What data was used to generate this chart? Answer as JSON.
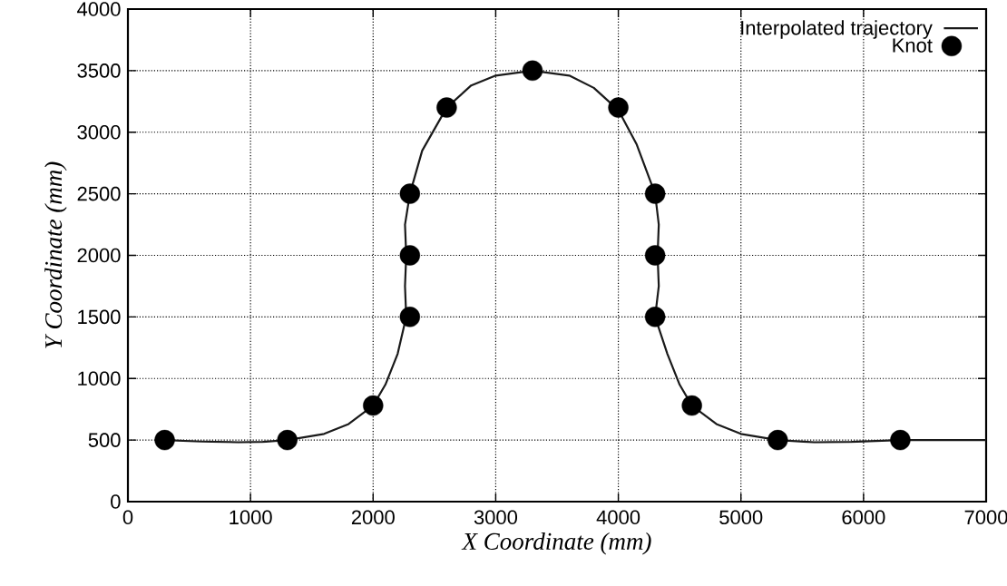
{
  "chart_data": {
    "type": "line",
    "xlabel": "X Coordinate (mm)",
    "ylabel": "Y Coordinate (mm)",
    "xlim": [
      0,
      7000
    ],
    "ylim": [
      0,
      4000
    ],
    "xticks": [
      0,
      1000,
      2000,
      3000,
      4000,
      5000,
      6000,
      7000
    ],
    "yticks": [
      0,
      500,
      1000,
      1500,
      2000,
      2500,
      3000,
      3500,
      4000
    ],
    "grid": true,
    "legend": "top right",
    "series": [
      {
        "name": "Interpolated trajectory",
        "color": "#1a1a1a",
        "x": [
          300,
          600,
          900,
          1100,
          1300,
          1600,
          1800,
          2000,
          2100,
          2200,
          2270,
          2260,
          2270,
          2260,
          2300,
          2400,
          2600,
          2800,
          3000,
          3300,
          3600,
          3800,
          4000,
          4150,
          4300,
          4330,
          4320,
          4330,
          4300,
          4400,
          4500,
          4600,
          4800,
          5000,
          5300,
          5600,
          5900,
          6300,
          6600,
          7000
        ],
        "values": [
          500,
          488,
          482,
          485,
          500,
          550,
          630,
          780,
          950,
          1200,
          1500,
          1750,
          2000,
          2250,
          2500,
          2850,
          3200,
          3380,
          3460,
          3500,
          3460,
          3360,
          3180,
          2900,
          2500,
          2250,
          2000,
          1750,
          1500,
          1200,
          950,
          780,
          630,
          550,
          500,
          482,
          485,
          500,
          500,
          500
        ]
      },
      {
        "name": "Knot",
        "type": "scatter",
        "marker": "circle",
        "color": "#000000",
        "x": [
          300,
          1300,
          2000,
          2300,
          2300,
          2300,
          2600,
          3300,
          4000,
          4300,
          4300,
          4300,
          4600,
          5300,
          6300
        ],
        "values": [
          500,
          500,
          780,
          1500,
          2000,
          2500,
          3200,
          3500,
          3200,
          2500,
          2000,
          1500,
          780,
          500,
          500
        ]
      }
    ]
  }
}
